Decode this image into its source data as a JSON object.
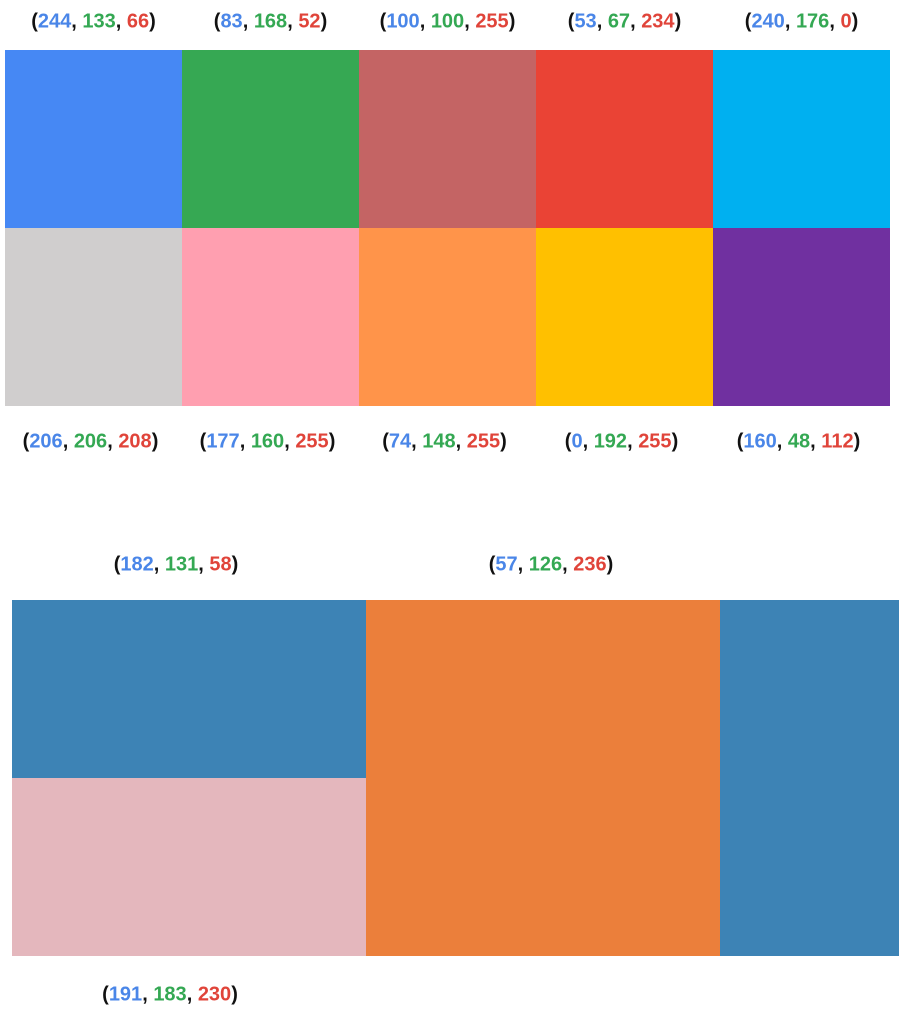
{
  "top_labels": [
    "(244, 133, 66)",
    "(83, 168, 52)",
    "(100, 100, 255)",
    "(53, 67, 234)",
    "(240, 176, 0)"
  ],
  "grid": {
    "rows": [
      [
        "#4688f4",
        "#36a853",
        "#c46464",
        "#ea4335",
        "#00b0f0"
      ],
      [
        "#d0cece",
        "#ff9fb0",
        "#ff944a",
        "#ffc000",
        "#7030a0"
      ]
    ]
  },
  "bottom_labels": [
    "(206, 206, 208)",
    "(177, 160, 255)",
    "(74, 148, 255)",
    "(0, 192, 255)",
    "(160, 48, 112)"
  ],
  "lower": {
    "labels": [
      "(182, 131, 58)",
      "(57, 126, 236)"
    ],
    "blocks": [
      "#3d83b5",
      "#e4b7bd",
      "#eb7f3b",
      "#3d83b5"
    ],
    "caption": "(191, 183, 230)"
  }
}
